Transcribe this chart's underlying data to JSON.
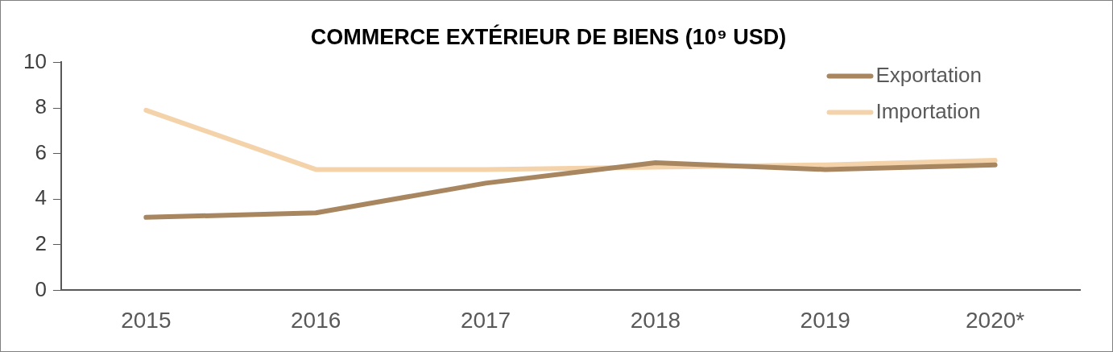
{
  "chart_data": {
    "type": "line",
    "title": "COMMERCE EXTÉRIEUR DE BIENS (10⁹ USD)",
    "categories": [
      "2015",
      "2016",
      "2017",
      "2018",
      "2019",
      "2020*"
    ],
    "series": [
      {
        "name": "Exportation",
        "color": "#a88660",
        "values": [
          3.2,
          3.4,
          4.7,
          5.6,
          5.3,
          5.5
        ]
      },
      {
        "name": "Importation",
        "color": "#f5d3aa",
        "values": [
          7.9,
          5.3,
          5.3,
          5.4,
          5.5,
          5.7
        ]
      }
    ],
    "ylim": [
      0,
      10
    ],
    "yticks": [
      0,
      2,
      4,
      6,
      8,
      10
    ],
    "grid": false,
    "legend": "top right",
    "marker": "none",
    "line_style": "solid"
  }
}
